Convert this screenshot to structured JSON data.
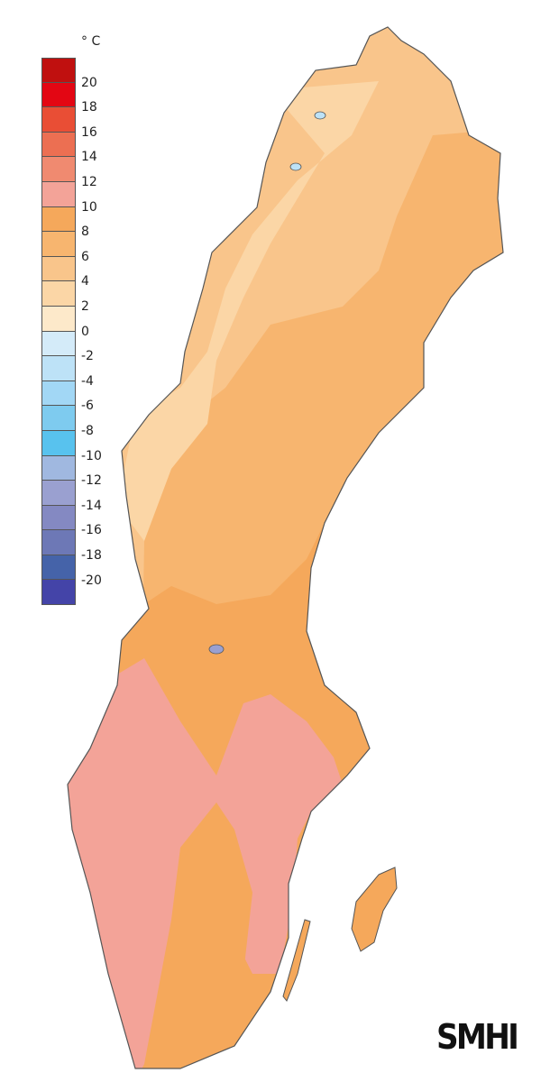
{
  "legend": {
    "unit": "° C",
    "labels": [
      "20",
      "18",
      "16",
      "14",
      "12",
      "10",
      "8",
      "6",
      "4",
      "2",
      "0",
      "-2",
      "-4",
      "-6",
      "-8",
      "-10",
      "-12",
      "-14",
      "-16",
      "-18",
      "-20"
    ],
    "colors": [
      "#c0100f",
      "#e30613",
      "#e94e35",
      "#ec6f52",
      "#f08a70",
      "#f3a398",
      "#f5a85b",
      "#f7b56f",
      "#f9c58b",
      "#fbd6a6",
      "#fde9ca",
      "#d4ebf9",
      "#bde2f7",
      "#a2d7f5",
      "#7ecbef",
      "#58c2ee",
      "#a0b8e0",
      "#9aa0d0",
      "#8489c2",
      "#6d78b6",
      "#4563a9",
      "#4444a8"
    ]
  },
  "map": {
    "zone_colors": {
      "south": "#f3a398",
      "middle": "#f5a85b",
      "north": "#f7b56f",
      "far_north": "#f9c58b",
      "mountains": "#fbd6a6",
      "lakes": "#a2c8e8",
      "outline": "#555555"
    }
  },
  "logo": "SMHI"
}
